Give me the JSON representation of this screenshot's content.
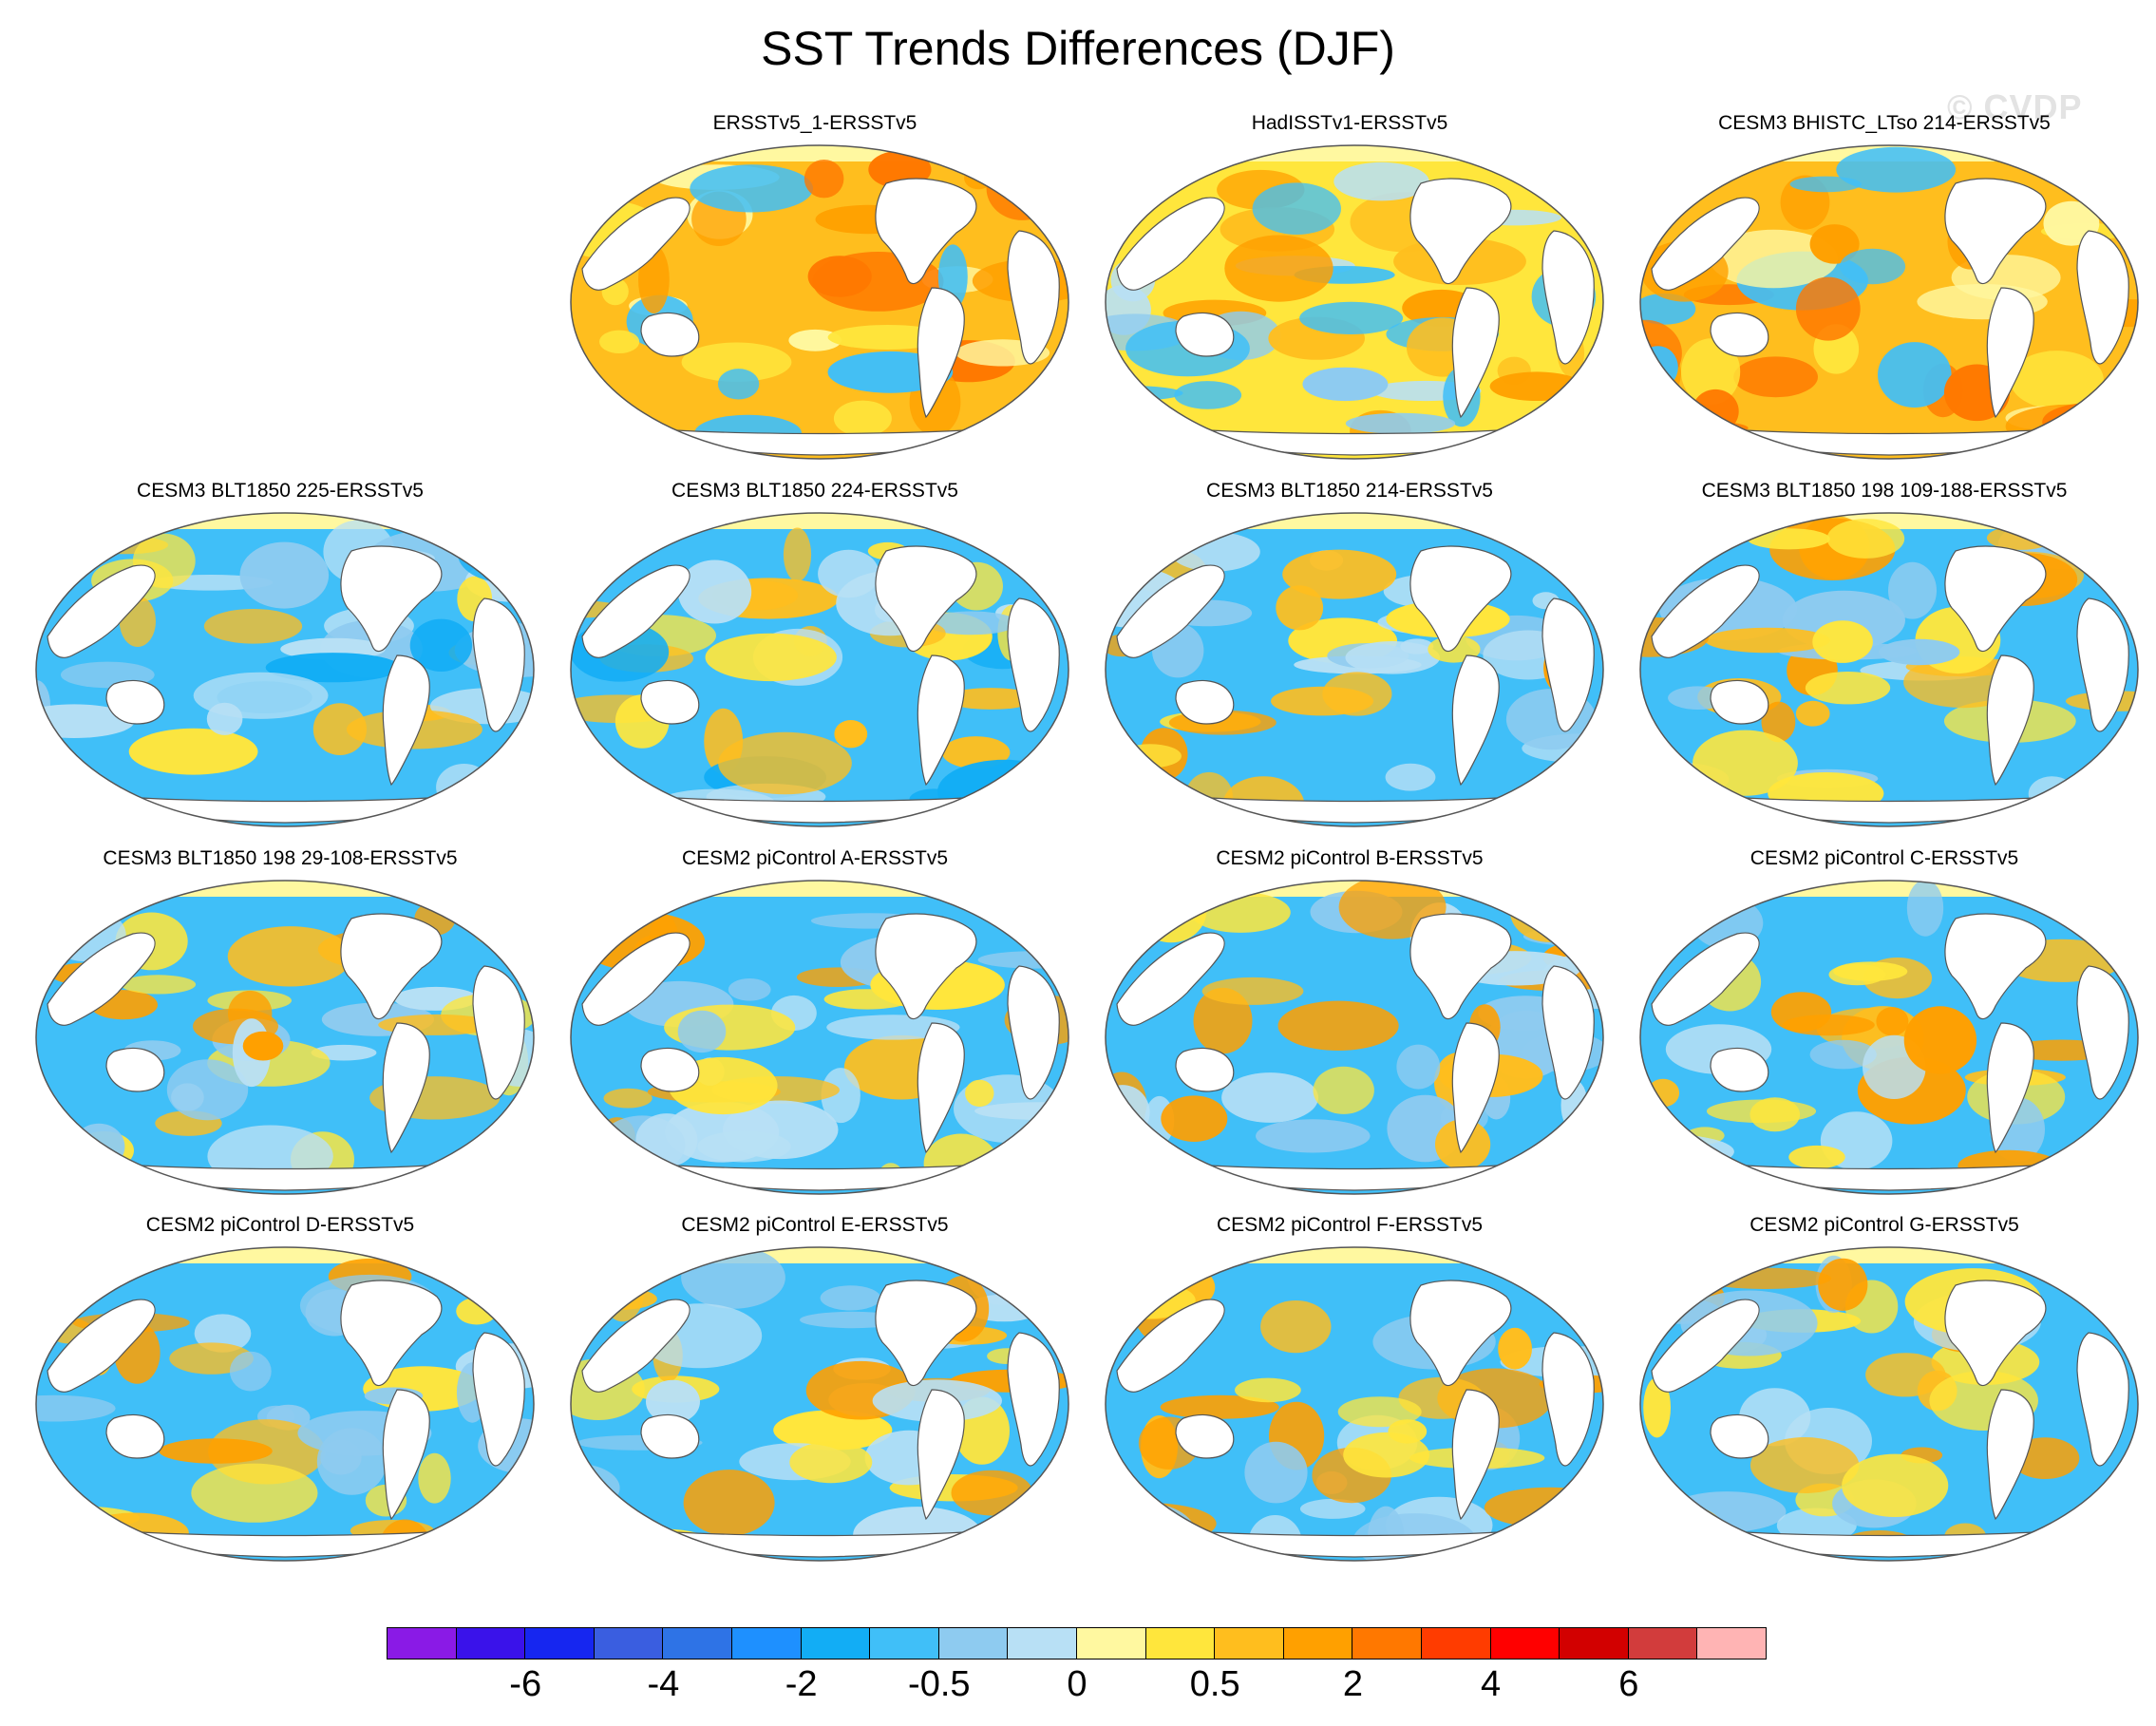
{
  "title": "SST Trends Differences (DJF)",
  "watermark": "© CVDP",
  "panels": [
    {
      "label": "ERSSTv5_1-ERSSTv5",
      "scheme": "warm",
      "row": 0,
      "col": 1
    },
    {
      "label": "HadISSTv1-ERSSTv5",
      "scheme": "warmmix",
      "row": 0,
      "col": 2
    },
    {
      "label": "CESM3 BHISTC_LTso 214-ERSSTv5",
      "scheme": "warm",
      "row": 0,
      "col": 3
    },
    {
      "label": "CESM3 BLT1850 225-ERSSTv5",
      "scheme": "cool",
      "row": 1,
      "col": 0
    },
    {
      "label": "CESM3 BLT1850 224-ERSSTv5",
      "scheme": "cool",
      "row": 1,
      "col": 1
    },
    {
      "label": "CESM3 BLT1850 214-ERSSTv5",
      "scheme": "mix",
      "row": 1,
      "col": 2
    },
    {
      "label": "CESM3 BLT1850 198 109-188-ERSSTv5",
      "scheme": "mix",
      "row": 1,
      "col": 3
    },
    {
      "label": "CESM3 BLT1850 198 29-108-ERSSTv5",
      "scheme": "mix",
      "row": 2,
      "col": 0
    },
    {
      "label": "CESM2 piControl A-ERSSTv5",
      "scheme": "mix",
      "row": 2,
      "col": 1
    },
    {
      "label": "CESM2 piControl B-ERSSTv5",
      "scheme": "mix",
      "row": 2,
      "col": 2
    },
    {
      "label": "CESM2 piControl C-ERSSTv5",
      "scheme": "mix",
      "row": 2,
      "col": 3
    },
    {
      "label": "CESM2 piControl D-ERSSTv5",
      "scheme": "mix",
      "row": 3,
      "col": 0
    },
    {
      "label": "CESM2 piControl E-ERSSTv5",
      "scheme": "mix",
      "row": 3,
      "col": 1
    },
    {
      "label": "CESM2 piControl F-ERSSTv5",
      "scheme": "mix",
      "row": 3,
      "col": 2
    },
    {
      "label": "CESM2 piControl G-ERSSTv5",
      "scheme": "mix",
      "row": 3,
      "col": 3
    }
  ],
  "colorbar": {
    "colors": [
      "#8a1ae6",
      "#3a12ea",
      "#1626f0",
      "#3a5ee0",
      "#2e73e6",
      "#1e90ff",
      "#12adf5",
      "#40bff8",
      "#8ecbf0",
      "#b8e0f5",
      "#fff8a0",
      "#ffe63c",
      "#ffbe1e",
      "#ffa000",
      "#ff7800",
      "#ff3c00",
      "#ff0000",
      "#d20000",
      "#d23c3c",
      "#ffb4b4"
    ],
    "labels": [
      {
        "text": "-6",
        "boundary": 2
      },
      {
        "text": "-4",
        "boundary": 4
      },
      {
        "text": "-2",
        "boundary": 6
      },
      {
        "text": "-0.5",
        "boundary": 8
      },
      {
        "text": "0",
        "boundary": 10
      },
      {
        "text": "0.5",
        "boundary": 12
      },
      {
        "text": "2",
        "boundary": 14
      },
      {
        "text": "4",
        "boundary": 16
      },
      {
        "text": "6",
        "boundary": 18
      }
    ]
  }
}
